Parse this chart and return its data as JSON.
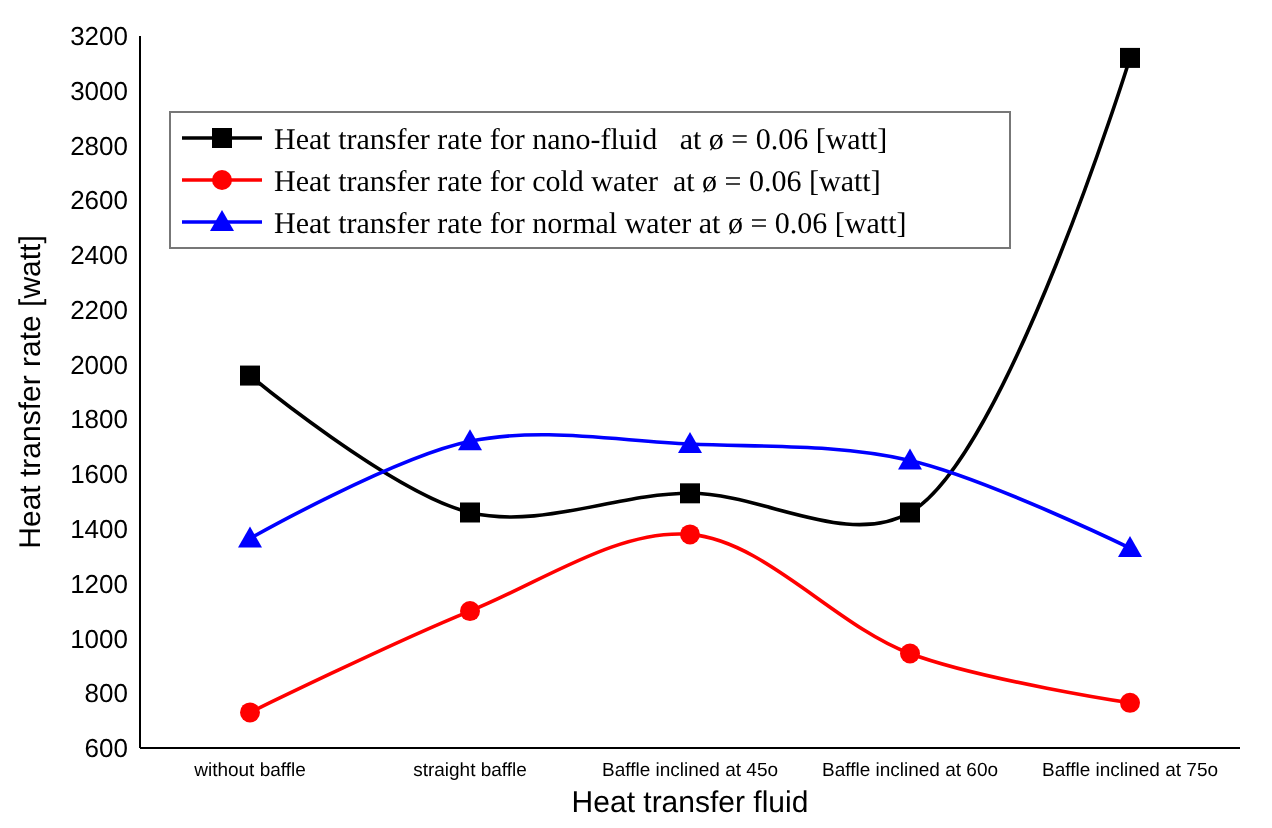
{
  "chart_data": {
    "type": "line",
    "xlabel": "Heat transfer fluid",
    "ylabel": "Heat transfer rate [watt]",
    "categories": [
      "without baffle",
      "straight baffle",
      "Baffle inclined at 45o",
      "Baffle inclined at 60o",
      "Baffle inclined at 75o"
    ],
    "series": [
      {
        "name": "Heat transfer rate for nano-fluid   at ø = 0.06 [watt]",
        "color": "#000000",
        "marker": "square",
        "values": [
          1960,
          1460,
          1530,
          1460,
          3120
        ]
      },
      {
        "name": "Heat transfer rate for cold water  at ø = 0.06 [watt]",
        "color": "#ff0000",
        "marker": "circle",
        "values": [
          730,
          1100,
          1380,
          945,
          765
        ]
      },
      {
        "name": "Heat transfer rate for normal water at ø = 0.06 [watt]",
        "color": "#0000ff",
        "marker": "triangle",
        "values": [
          1365,
          1720,
          1710,
          1650,
          1330
        ]
      }
    ],
    "ylim": [
      600,
      3200
    ],
    "yticks": [
      600,
      800,
      1000,
      1200,
      1400,
      1600,
      1800,
      2000,
      2200,
      2400,
      2600,
      2800,
      3000,
      3200
    ],
    "grid": false,
    "legend": "top left",
    "line_style": "solid"
  }
}
